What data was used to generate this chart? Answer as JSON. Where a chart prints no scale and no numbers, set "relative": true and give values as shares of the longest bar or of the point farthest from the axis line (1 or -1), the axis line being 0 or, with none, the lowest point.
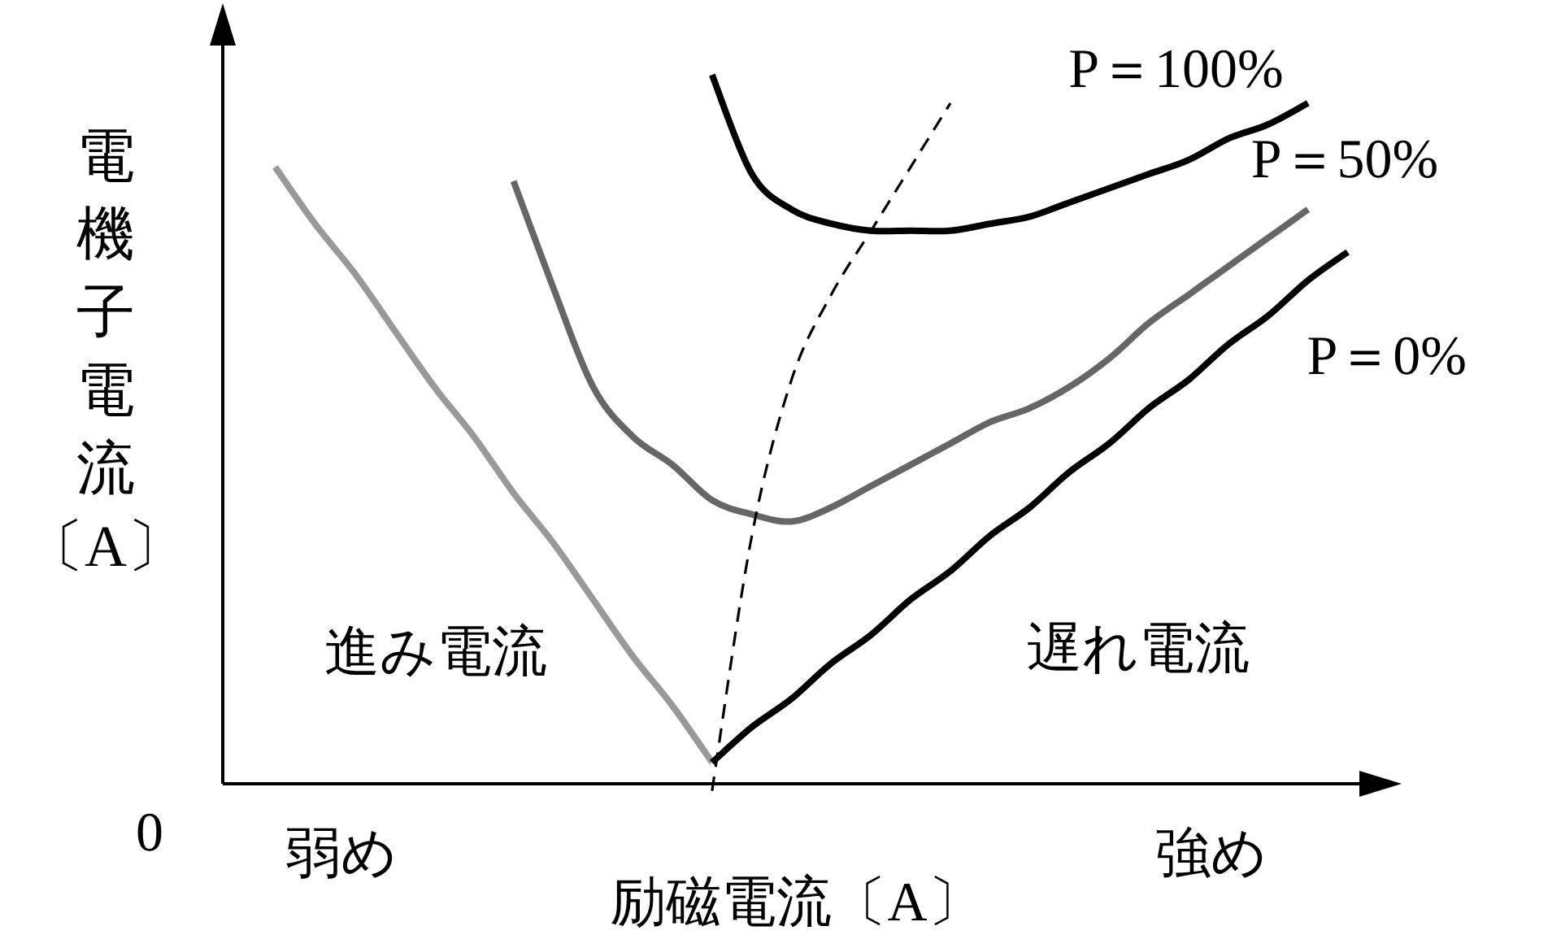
{
  "chart_data": {
    "type": "line",
    "relative": true,
    "xlabel": "励磁電流〔A〕",
    "ylabel": "電機子電流〔A〕",
    "categories": [
      null,
      null,
      null,
      null,
      null,
      null,
      null,
      null,
      null,
      null,
      null,
      null,
      null,
      null,
      null,
      null,
      null,
      null,
      null,
      null,
      null,
      null,
      null,
      null,
      null,
      null,
      null,
      null,
      null
    ],
    "annotations": [
      "0",
      "弱め",
      "強め",
      "進み電流",
      "遅れ電流"
    ],
    "series": [
      {
        "color": "#999999",
        "values": [
          null,
          0.87,
          0.79,
          0.72,
          0.64,
          0.56,
          0.49,
          0.41,
          0.34,
          0.26,
          0.18,
          0.11,
          0.03,
          null,
          null,
          null,
          null,
          null,
          null,
          null,
          null,
          null,
          null,
          null,
          null,
          null,
          null,
          null,
          null
        ]
      },
      {
        "name": "P＝0%",
        "color": "#000000",
        "values": [
          null,
          null,
          null,
          null,
          null,
          null,
          null,
          null,
          null,
          null,
          null,
          null,
          0.03,
          0.08,
          0.12,
          0.17,
          0.21,
          0.26,
          0.3,
          0.35,
          0.39,
          0.44,
          0.48,
          0.53,
          0.57,
          0.62,
          0.66,
          0.71,
          0.75
        ]
      },
      {
        "name": "P＝50%",
        "color": "#666666",
        "values": [
          null,
          null,
          null,
          null,
          null,
          null,
          null,
          0.85,
          0.7,
          0.56,
          0.49,
          0.45,
          0.4,
          0.38,
          0.37,
          0.39,
          0.42,
          0.45,
          0.48,
          0.51,
          0.53,
          0.56,
          0.6,
          0.65,
          0.69,
          0.73,
          0.77,
          0.81,
          null
        ]
      },
      {
        "name": "P＝100%",
        "color": "#000000",
        "values": [
          null,
          null,
          null,
          null,
          null,
          null,
          null,
          null,
          null,
          null,
          null,
          null,
          1,
          0.86,
          0.81,
          0.79,
          0.78,
          0.78,
          0.78,
          0.79,
          0.8,
          0.82,
          0.84,
          0.86,
          0.88,
          0.91,
          0.93,
          0.96,
          null
        ]
      },
      {
        "color": "#000000",
        "line_style": "dashed",
        "values": [
          null,
          null,
          null,
          null,
          null,
          null,
          null,
          null,
          null,
          null,
          null,
          null,
          -0.01,
          0.35,
          0.57,
          0.69,
          0.78,
          0.87,
          0.96,
          null,
          null,
          null,
          null,
          null,
          null,
          null,
          null,
          null,
          null
        ]
      }
    ]
  }
}
